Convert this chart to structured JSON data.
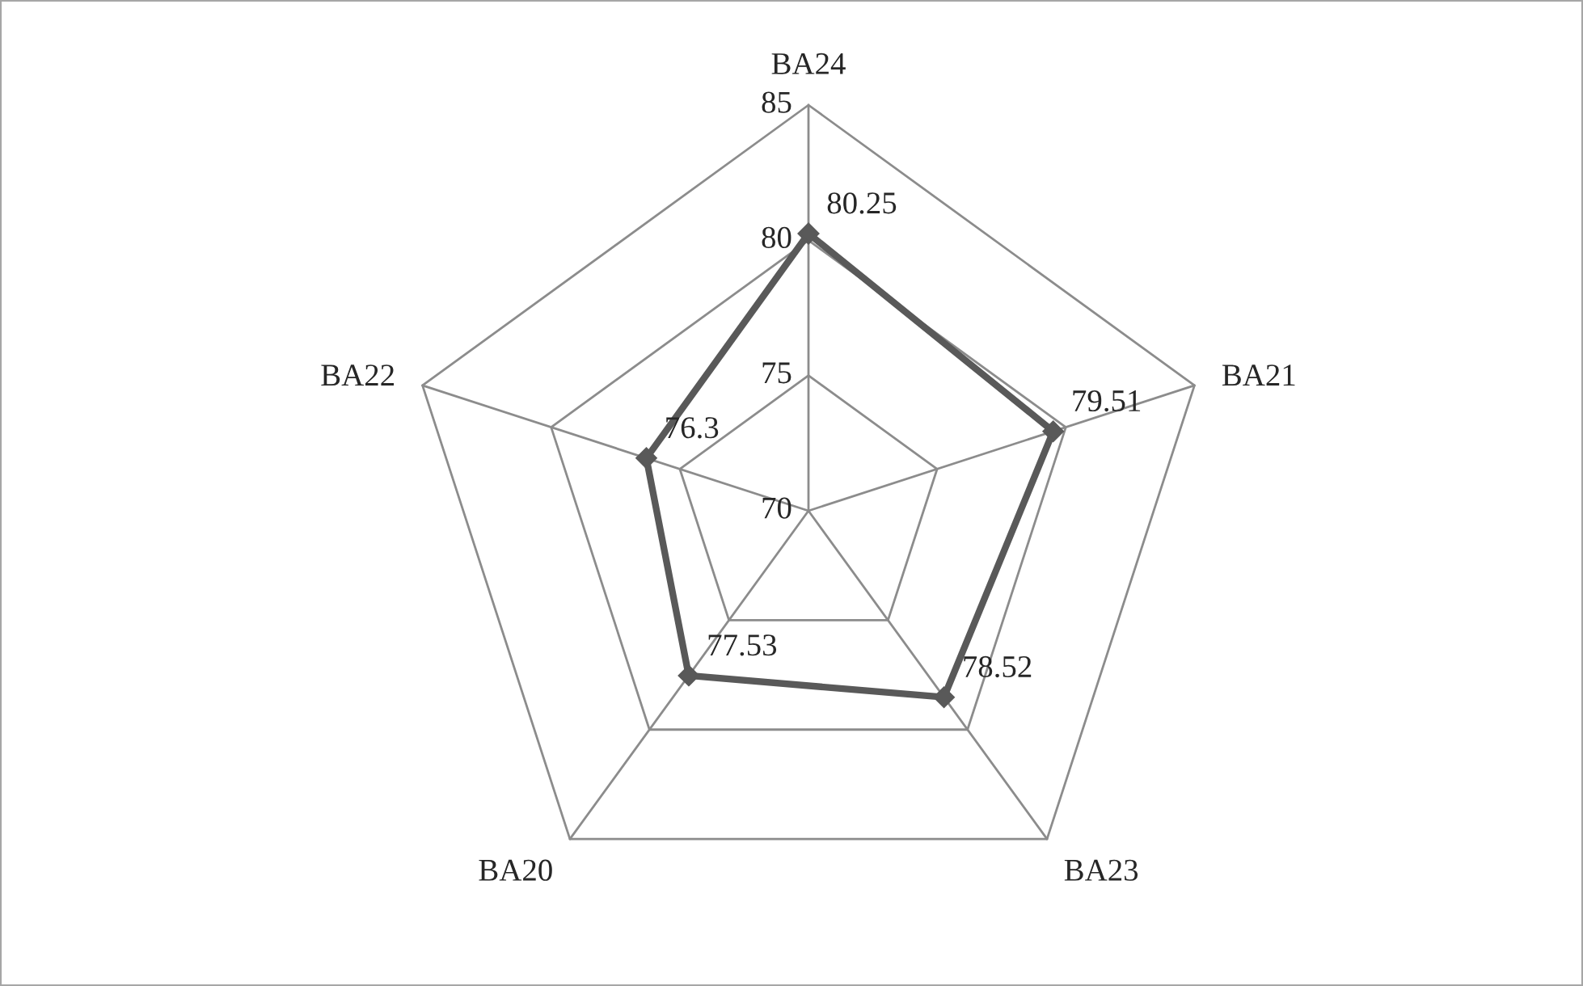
{
  "chart_data": {
    "type": "radar",
    "categories": [
      "BA24",
      "BA21",
      "BA23",
      "BA20",
      "BA22"
    ],
    "series": [
      {
        "color": "#595959",
        "values": [
          80.25,
          79.51,
          78.52,
          77.53,
          76.3
        ]
      }
    ],
    "ylim": [
      70,
      85
    ],
    "yticks": [
      70,
      75,
      80,
      85
    ],
    "grid": true,
    "marker": "diamond",
    "line_style": "solid",
    "data_labels": true
  }
}
